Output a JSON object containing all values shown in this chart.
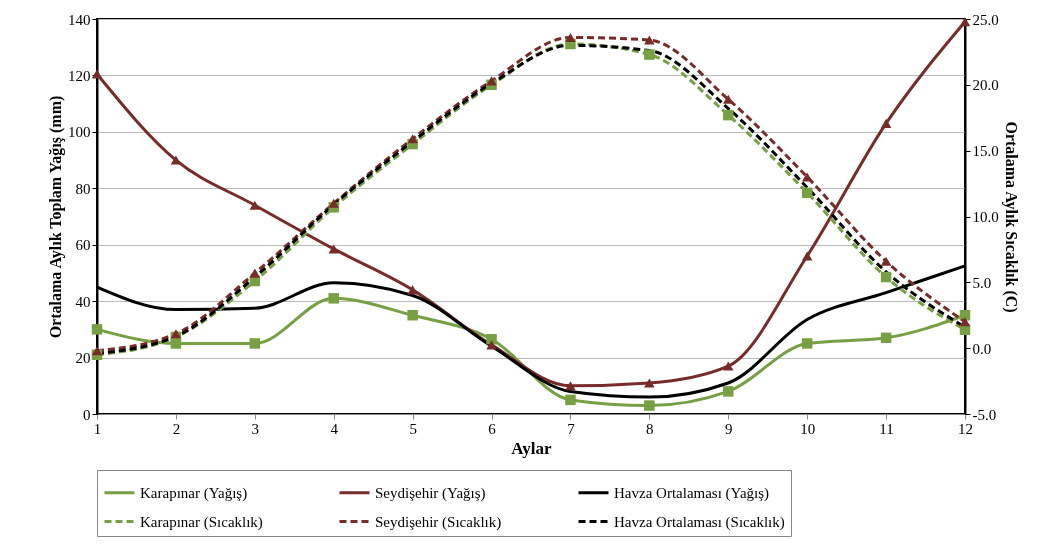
{
  "chart_data": {
    "type": "line",
    "xlabel": "Aylar",
    "ylabel": "Ortalama Aylık Toplam Yağış (mm)",
    "y2label": "Ortalama Aylık Sıcaklık (C)",
    "x": [
      1,
      2,
      3,
      4,
      5,
      6,
      7,
      8,
      9,
      10,
      11,
      12
    ],
    "xlim": [
      1,
      12
    ],
    "xticks": [
      1,
      2,
      3,
      4,
      5,
      6,
      7,
      8,
      9,
      10,
      11,
      12
    ],
    "ylim": [
      0,
      140
    ],
    "yticks": [
      0,
      20,
      40,
      60,
      80,
      100,
      120,
      140
    ],
    "y2lim": [
      -5,
      25
    ],
    "y2ticks": [
      {
        "value": -5,
        "label": "-5.0"
      },
      {
        "value": 0,
        "label": "0.0"
      },
      {
        "value": 5,
        "label": "5.0"
      },
      {
        "value": 10,
        "label": "10.0"
      },
      {
        "value": 15,
        "label": "15.0"
      },
      {
        "value": 20,
        "label": "20.0"
      },
      {
        "value": 25,
        "label": "25.0"
      }
    ],
    "grid": "y",
    "legend": "bottom",
    "series": [
      {
        "name": "Karapınar (Yağış)",
        "color": "#77a044",
        "marker": "square",
        "line_style": "solid",
        "values": [
          30,
          25,
          25,
          41,
          35,
          26.5,
          5,
          3,
          8,
          25,
          27,
          35
        ]
      },
      {
        "name": "Seydişehir (Yağış)",
        "color": "#772c2a",
        "marker": "triangle",
        "line_style": "solid",
        "values": [
          120.5,
          90,
          74,
          58.5,
          44,
          24.5,
          10,
          11,
          17,
          56,
          103,
          139
        ]
      },
      {
        "name": "Havza Ortalaması (Yağış)",
        "color": "#000000",
        "marker": "none",
        "line_style": "solid",
        "values": [
          45,
          37,
          37.5,
          46.5,
          42,
          24,
          8,
          6,
          11,
          33.5,
          43,
          52.5
        ]
      },
      {
        "name": "Karapınar (Sıcaklık)",
        "color": "#77a044",
        "marker": "square",
        "line_style": "dashed",
        "axis": "y2",
        "values": [
          -0.5,
          0.85,
          5.1,
          10.7,
          15.5,
          20,
          23.1,
          22.3,
          17.7,
          11.8,
          5.4,
          1.4
        ]
      },
      {
        "name": "Seydişehir (Sıcaklık)",
        "color": "#772c2a",
        "marker": "triangle",
        "line_style": "dashed",
        "axis": "y2",
        "values": [
          -0.2,
          1.1,
          5.7,
          11,
          15.9,
          20.3,
          23.6,
          23.4,
          18.9,
          13,
          6.6,
          2
        ]
      },
      {
        "name": "Havza Ortalaması (Sıcaklık)",
        "color": "#000000",
        "marker": "none",
        "line_style": "dashed",
        "axis": "y2",
        "values": [
          -0.4,
          0.9,
          5.4,
          10.9,
          15.7,
          20.1,
          23,
          22.6,
          18.2,
          12.2,
          5.8,
          1.6
        ]
      }
    ]
  }
}
